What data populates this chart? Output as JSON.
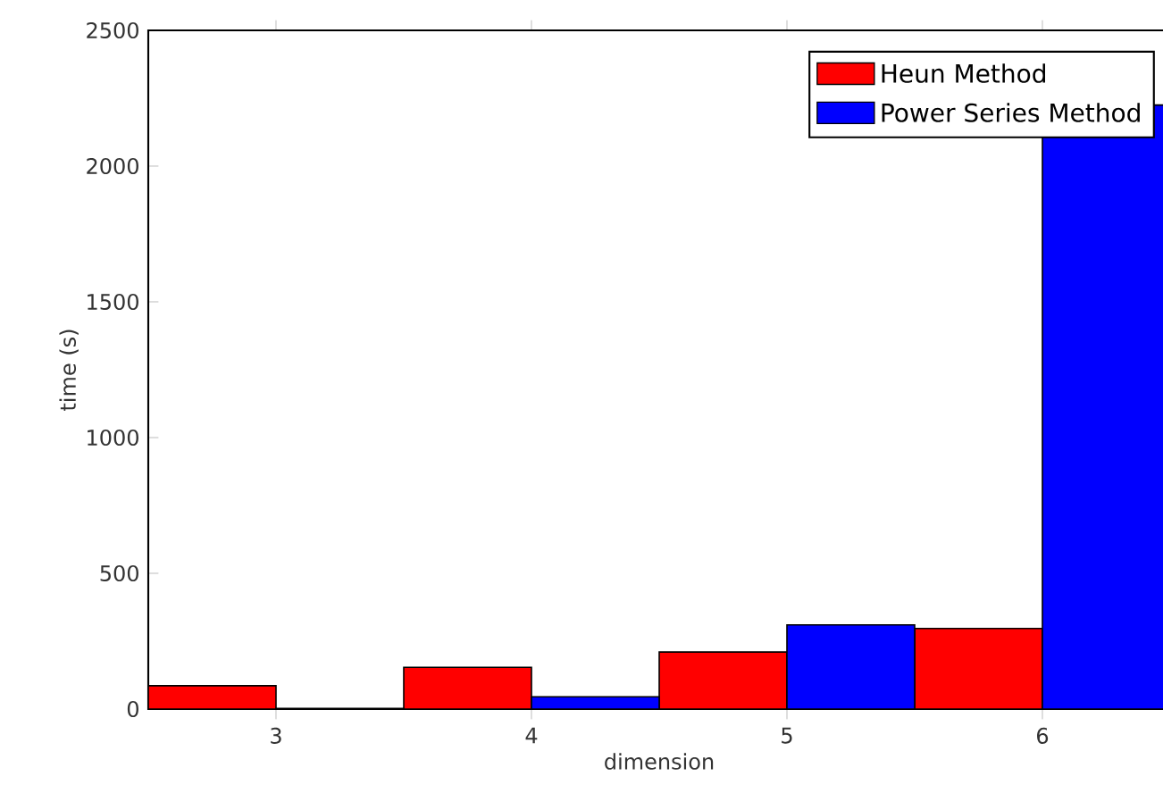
{
  "chart_data": {
    "type": "bar",
    "xlabel": "dimension",
    "ylabel": "time (s)",
    "x": [
      3,
      4,
      5,
      6
    ],
    "xlim": [
      2.5,
      6.5
    ],
    "xticks": [
      3,
      4,
      5,
      6
    ],
    "ylim": [
      0,
      2500
    ],
    "yticks": [
      0,
      500,
      1000,
      1500,
      2000,
      2500
    ],
    "legend": "top right",
    "series": [
      {
        "name": "Heun Method",
        "color": "#ff0000",
        "values": [
          86,
          154,
          210,
          297
        ]
      },
      {
        "name": "Power Series Method",
        "color": "#0000ff",
        "values": [
          2,
          45,
          310,
          2225
        ]
      }
    ]
  }
}
